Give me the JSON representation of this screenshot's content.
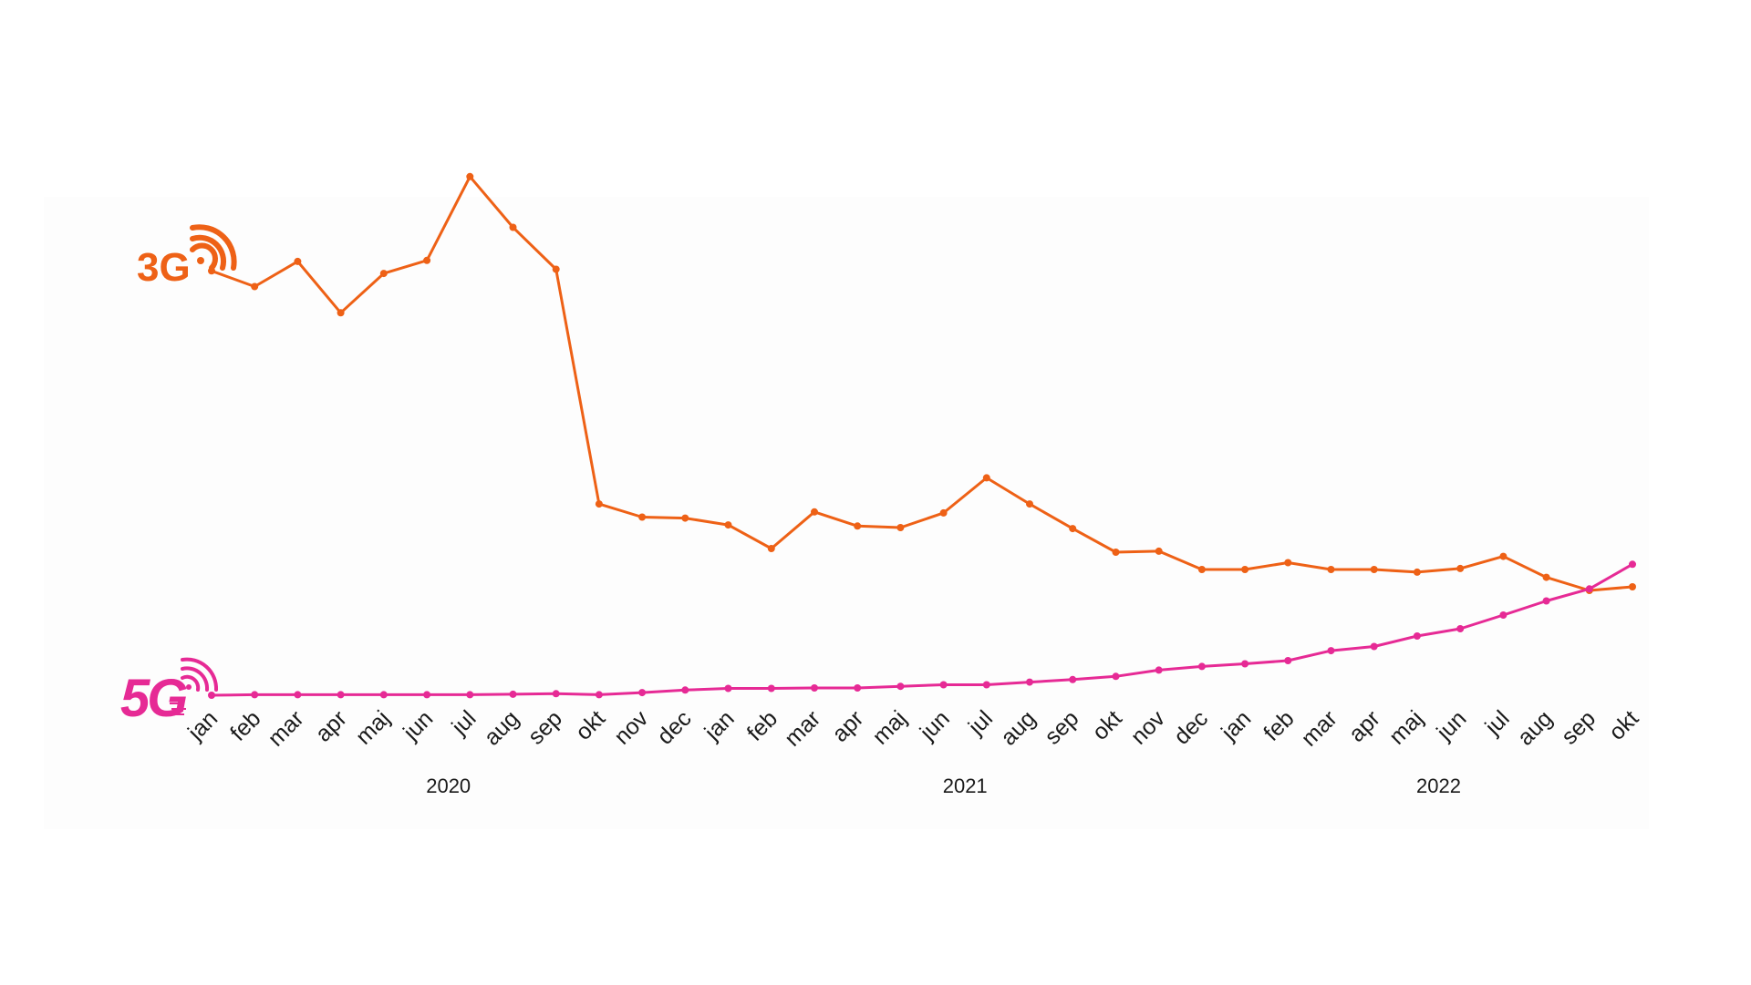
{
  "chart_data": {
    "type": "line",
    "x": [
      "jan",
      "feb",
      "mar",
      "apr",
      "maj",
      "jun",
      "jul",
      "aug",
      "sep",
      "okt",
      "nov",
      "dec",
      "jan",
      "feb",
      "mar",
      "apr",
      "maj",
      "jun",
      "jul",
      "aug",
      "sep",
      "okt",
      "nov",
      "dec",
      "jan",
      "feb",
      "mar",
      "apr",
      "maj",
      "jun",
      "jul",
      "aug",
      "sep",
      "okt"
    ],
    "years": [
      {
        "label": "2020",
        "start": 0,
        "end": 11
      },
      {
        "label": "2021",
        "start": 12,
        "end": 23
      },
      {
        "label": "2022",
        "start": 24,
        "end": 33
      }
    ],
    "series": [
      {
        "name": "3G",
        "color": "#ee6116",
        "values": [
          81.0,
          78.0,
          82.8,
          73.0,
          80.5,
          83.0,
          99.0,
          89.3,
          81.3,
          36.5,
          34.0,
          33.8,
          32.5,
          28.0,
          35.0,
          32.3,
          32.0,
          34.8,
          41.5,
          36.5,
          31.8,
          27.3,
          27.5,
          24.0,
          24.0,
          25.3,
          24.0,
          24.0,
          23.5,
          24.2,
          26.5,
          22.5,
          20.0,
          20.7
        ]
      },
      {
        "name": "5G",
        "color": "#e62a95",
        "values": [
          0.0,
          0.1,
          0.1,
          0.1,
          0.1,
          0.1,
          0.1,
          0.2,
          0.3,
          0.1,
          0.5,
          1.0,
          1.3,
          1.3,
          1.4,
          1.4,
          1.7,
          2.0,
          2.0,
          2.5,
          3.0,
          3.6,
          4.8,
          5.5,
          6.0,
          6.6,
          8.5,
          9.3,
          11.3,
          12.7,
          15.3,
          18.0,
          20.3,
          25.0
        ]
      }
    ],
    "ylim": [
      0,
      100
    ],
    "grid": false,
    "legend": "inline-left"
  },
  "legend": {
    "series_3g_label": "3G",
    "series_5g_label": "5G",
    "signal_icon": "signal-waves-icon"
  }
}
